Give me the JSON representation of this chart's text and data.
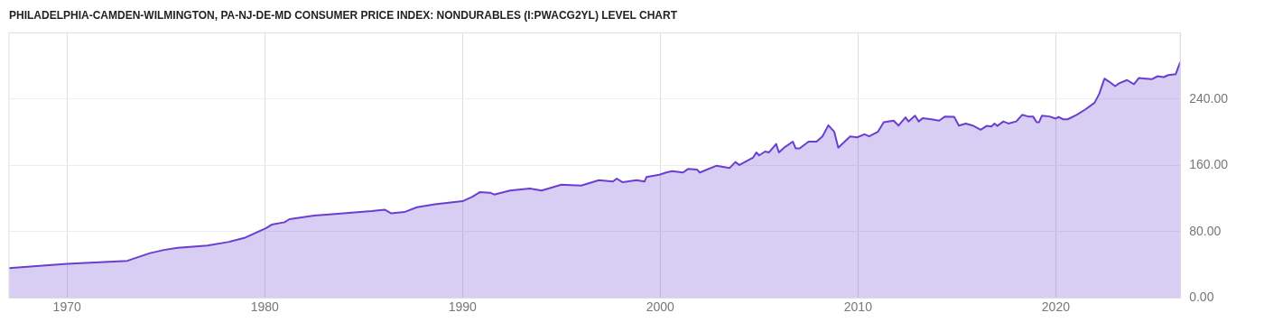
{
  "chart_data": {
    "type": "area",
    "title": "PHILADELPHIA-CAMDEN-WILMINGTON, PA-NJ-DE-MD CONSUMER PRICE INDEX: NONDURABLES (I:PWACG2YL) LEVEL CHART",
    "x": [
      1967.07,
      1970.0,
      1973.05,
      1974.2,
      1974.9,
      1975.6,
      1977.1,
      1978.2,
      1978.97,
      1980.05,
      1980.35,
      1981.0,
      1981.25,
      1982.5,
      1983.7,
      1985.4,
      1986.06,
      1986.4,
      1987.06,
      1987.7,
      1988.6,
      1989.3,
      1990.0,
      1990.5,
      1990.87,
      1991.4,
      1991.6,
      1992.4,
      1993.4,
      1994.0,
      1995.0,
      1996.0,
      1996.9,
      1997.6,
      1997.8,
      1998.1,
      1998.8,
      1999.2,
      1999.3,
      1999.95,
      2000.3,
      2000.6,
      2001.15,
      2001.4,
      2001.85,
      2002.0,
      2002.85,
      2003.5,
      2003.8,
      2004.0,
      2004.7,
      2004.86,
      2005.0,
      2005.3,
      2005.5,
      2005.86,
      2006.0,
      2006.3,
      2006.7,
      2006.85,
      2007.05,
      2007.5,
      2007.9,
      2008.2,
      2008.5,
      2008.8,
      2009.0,
      2009.6,
      2009.95,
      2010.33,
      2010.56,
      2011.0,
      2011.3,
      2011.8,
      2012.05,
      2012.4,
      2012.55,
      2012.88,
      2013.07,
      2013.27,
      2013.7,
      2014.1,
      2014.4,
      2014.86,
      2015.1,
      2015.45,
      2015.8,
      2016.2,
      2016.5,
      2016.74,
      2016.9,
      2017.04,
      2017.35,
      2017.6,
      2018.0,
      2018.3,
      2018.6,
      2018.85,
      2019.03,
      2019.15,
      2019.3,
      2019.68,
      2020.0,
      2020.14,
      2020.37,
      2020.6,
      2021.05,
      2021.5,
      2021.96,
      2022.2,
      2022.46,
      2022.7,
      2023.0,
      2023.2,
      2023.6,
      2023.95,
      2024.2,
      2024.85,
      2025.15,
      2025.46,
      2025.68,
      2026.06,
      2026.29
    ],
    "series": [
      {
        "color": "#6a3fd0",
        "values": [
          36,
          41,
          44.7,
          54,
          57.8,
          60.3,
          63,
          67.6,
          72.3,
          84,
          88.4,
          91.3,
          95,
          99.3,
          101.5,
          104.7,
          106.5,
          102,
          103.6,
          109.4,
          113,
          114.9,
          116.7,
          122,
          127.6,
          126.9,
          124.7,
          129.5,
          132,
          129.5,
          136.7,
          135.6,
          142,
          140.4,
          144,
          139.6,
          142,
          140.4,
          145.8,
          148.7,
          151.3,
          153,
          151.3,
          155.6,
          155,
          151.3,
          159.6,
          156.7,
          164,
          160.4,
          169.5,
          175.6,
          172,
          176.7,
          175.6,
          185.8,
          175.6,
          182,
          188.7,
          180.4,
          180.4,
          188.7,
          188.7,
          195,
          208.4,
          200.4,
          181.4,
          195,
          193.8,
          197.5,
          195,
          200.4,
          212,
          214,
          208,
          218,
          213,
          220,
          213,
          217,
          215.6,
          214,
          219,
          218.5,
          208,
          210.5,
          208,
          203,
          207.6,
          207,
          210.5,
          207.6,
          213,
          210.5,
          213,
          221,
          219,
          219,
          212,
          212,
          220,
          219,
          216.5,
          218.5,
          215.6,
          215.6,
          221,
          227.6,
          235.6,
          246.5,
          264.7,
          261,
          255.6,
          259,
          263,
          258,
          265.5,
          264,
          267.6,
          266.5,
          269,
          270,
          284.7
        ]
      }
    ],
    "xlim": [
      1967.07,
      2026.29
    ],
    "xticks": [
      1970,
      1980,
      1990,
      2000,
      2010,
      2020
    ],
    "ylim": [
      0,
      320
    ],
    "yticks": [
      {
        "value": 0,
        "label": "0.00"
      },
      {
        "value": 80,
        "label": "80.00"
      },
      {
        "value": 160,
        "label": "160.00"
      },
      {
        "value": 240,
        "label": "240.00"
      }
    ],
    "grid": true
  }
}
